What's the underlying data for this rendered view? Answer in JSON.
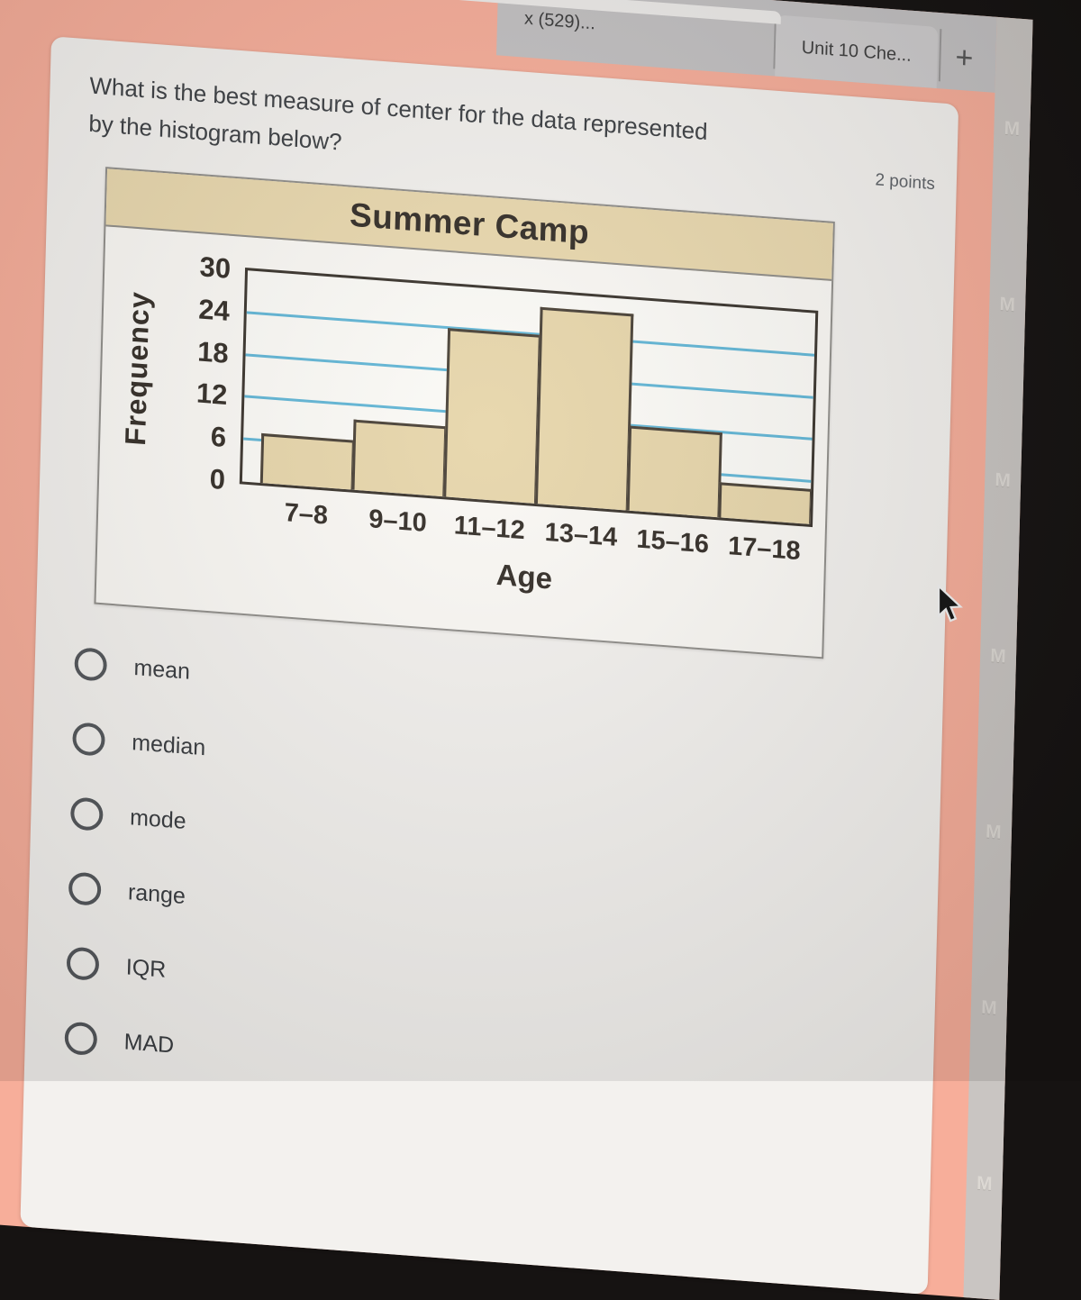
{
  "browser": {
    "tab_partial_label": "x (529)...",
    "tab_active_label": "Unit 10 Che...",
    "new_tab_label": "+"
  },
  "watermark_letter": "M",
  "question": {
    "line1": "What is the best measure of center for the data represented",
    "line2": "by the histogram below?",
    "points_label": "2 points"
  },
  "chart_data": {
    "type": "bar",
    "title": "Summer Camp",
    "xlabel": "Age",
    "ylabel": "Frequency",
    "categories": [
      "7–8",
      "9–10",
      "11–12",
      "13–14",
      "15–16",
      "17–18"
    ],
    "values": [
      7,
      10,
      24,
      28,
      12,
      5
    ],
    "ylim": [
      0,
      30
    ],
    "yticks": [
      0,
      6,
      12,
      18,
      24,
      30
    ],
    "gridlines": [
      6,
      12,
      18,
      24
    ],
    "legend": "none",
    "grid_color": "#62b6d6",
    "bar_fill": "#e7d6ab",
    "bar_border": "#4a4238",
    "title_band_color": "#e9d8ae",
    "frame_color": "#3b352e"
  },
  "options": [
    {
      "label": "mean"
    },
    {
      "label": "median"
    },
    {
      "label": "mode"
    },
    {
      "label": "range"
    },
    {
      "label": "IQR"
    },
    {
      "label": "MAD"
    }
  ],
  "theme": {
    "form_background": "#f7ae9a",
    "card_background": "#f3f1ee",
    "bezel_black": "#161312",
    "chrome_gray": "#c3c1c2",
    "tab_active_gray": "#cecccd",
    "edge_strip_gray": "#c9c5c2"
  }
}
